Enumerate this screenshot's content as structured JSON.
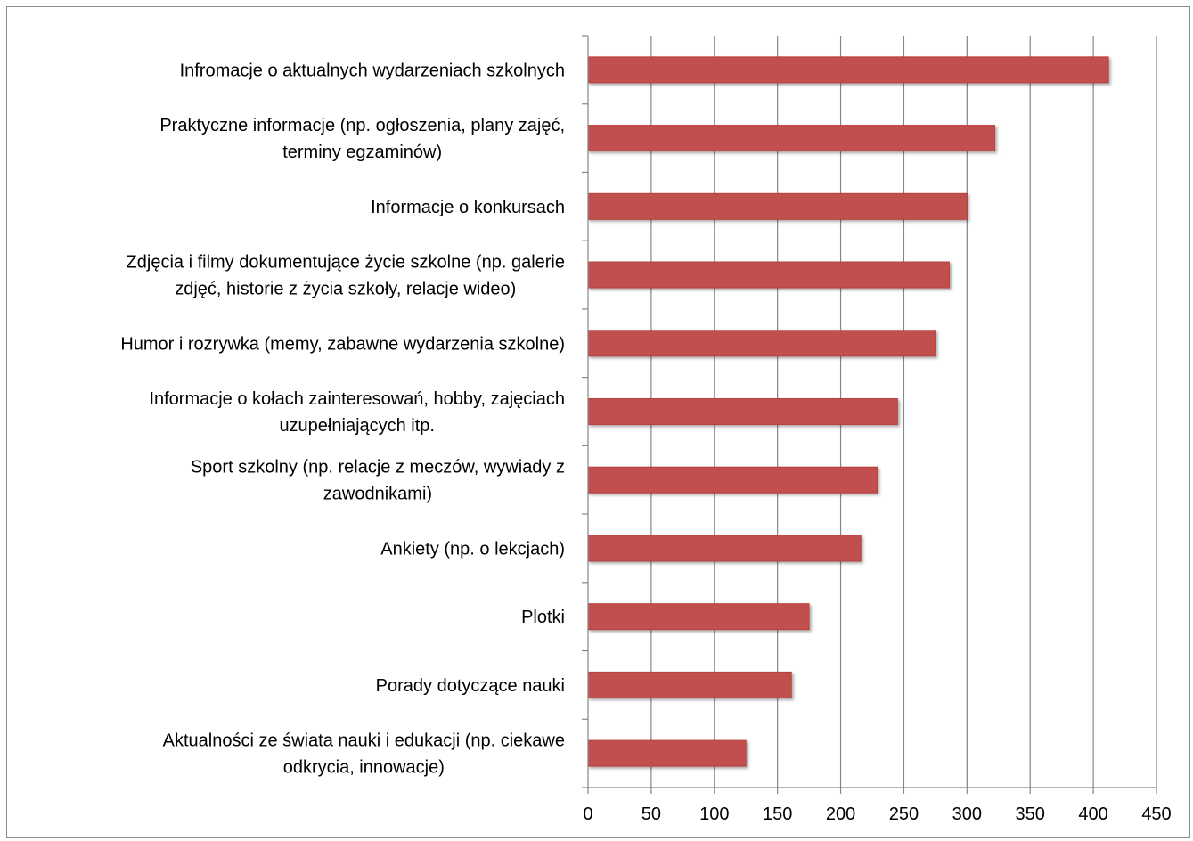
{
  "chart_data": {
    "type": "bar",
    "orientation": "horizontal",
    "categories": [
      [
        "Infromacje o aktualnych wydarzeniach szkolnych"
      ],
      [
        "Praktyczne informacje (np. ogłoszenia, plany zajęć,",
        "terminy egzaminów)"
      ],
      [
        "Informacje o konkursach"
      ],
      [
        "Zdjęcia i filmy dokumentujące życie szkolne (np. galerie",
        "zdjęć, historie z życia szkoły, relacje wideo)"
      ],
      [
        "Humor i rozrywka (memy, zabawne wydarzenia szkolne)"
      ],
      [
        "Informacje o kołach zainteresowań, hobby, zajęciach",
        "uzupełniających itp."
      ],
      [
        "Sport szkolny (np. relacje z meczów, wywiady z",
        "zawodnikami)"
      ],
      [
        "Ankiety (np. o lekcjach)"
      ],
      [
        "Plotki"
      ],
      [
        "Porady dotyczące nauki"
      ],
      [
        "Aktualności ze świata nauki i edukacji (np. ciekawe",
        "odkrycia, innowacje)"
      ]
    ],
    "values": [
      412,
      322,
      300,
      286,
      275,
      245,
      229,
      216,
      175,
      161,
      125
    ],
    "xlim": [
      0,
      450
    ],
    "xticks": [
      "0",
      "50",
      "100",
      "150",
      "200",
      "250",
      "300",
      "350",
      "400",
      "450"
    ],
    "grid": true,
    "legend": "none",
    "bar_color": "#c0504d",
    "bar_border_color": "#b9403d",
    "grid_color": "#868686"
  }
}
